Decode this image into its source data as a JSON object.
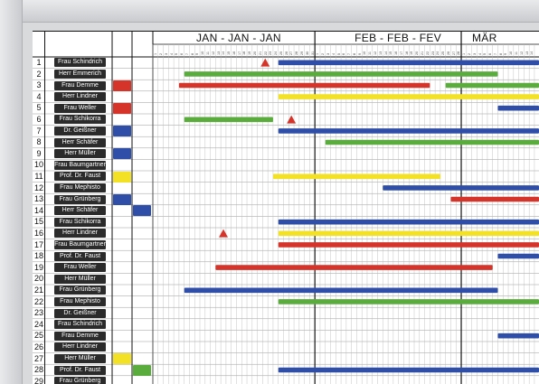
{
  "months": [
    "JAN - JAN - JAN",
    "FEB - FEB - FEV",
    "MÄR"
  ],
  "colors": {
    "red": "#d5342a",
    "green": "#5aac3c",
    "blue": "#2f4ea8",
    "yellow": "#f2e125",
    "frame": "#c9cbce",
    "tag": "#2b2b2b"
  },
  "rows": [
    {
      "num": "1",
      "name": "Frau Schindrich"
    },
    {
      "num": "2",
      "name": "Herr Emmerich"
    },
    {
      "num": "3",
      "name": "Frau Demme",
      "magnet": "red"
    },
    {
      "num": "4",
      "name": "Herr Lindner"
    },
    {
      "num": "5",
      "name": "Frau Weller",
      "magnet": "red"
    },
    {
      "num": "6",
      "name": "Frau Schikorra"
    },
    {
      "num": "7",
      "name": "Dr. Geißner",
      "magnet": "blue"
    },
    {
      "num": "8",
      "name": "Herr Schäfer"
    },
    {
      "num": "9",
      "name": "Herr Müller",
      "magnet": "blue"
    },
    {
      "num": "10",
      "name": "Frau Baumgartner"
    },
    {
      "num": "11",
      "name": "Prof. Dr. Faust",
      "magnet": "yellow"
    },
    {
      "num": "12",
      "name": "Frau Mephisto"
    },
    {
      "num": "13",
      "name": "Frau Grünberg",
      "magnet": "blue"
    },
    {
      "num": "14",
      "name": "Herr Schäfer",
      "magnet2": "blue"
    },
    {
      "num": "15",
      "name": "Frau Schikorra"
    },
    {
      "num": "16",
      "name": "Herr Lindner"
    },
    {
      "num": "17",
      "name": "Frau Baumgartner"
    },
    {
      "num": "18",
      "name": "Prof. Dr. Faust"
    },
    {
      "num": "19",
      "name": "Frau Weller"
    },
    {
      "num": "20",
      "name": "Herr Müller"
    },
    {
      "num": "21",
      "name": "Frau Grünberg"
    },
    {
      "num": "22",
      "name": "Frau Mephisto"
    },
    {
      "num": "23",
      "name": "Dr. Geißner"
    },
    {
      "num": "24",
      "name": "Frau Schindrich"
    },
    {
      "num": "25",
      "name": "Frau Demme"
    },
    {
      "num": "26",
      "name": "Herr Lindner"
    },
    {
      "num": "27",
      "name": "Herr Müller",
      "magnet": "yellow"
    },
    {
      "num": "28",
      "name": "Prof. Dr. Faust",
      "magnet2": "green"
    },
    {
      "num": "29",
      "name": "Frau Grünberg"
    }
  ],
  "bars": [
    {
      "row": 1,
      "color": "blue",
      "start": "Jan 25",
      "end": "Mar 11+"
    },
    {
      "row": 2,
      "color": "green",
      "start": "Jan 7",
      "end": "Mar 8"
    },
    {
      "row": 3,
      "color": "red",
      "start": "Jan 6",
      "end": "Feb 23"
    },
    {
      "row": 3,
      "color": "green",
      "start": "Feb 26",
      "end": "Mar 11+"
    },
    {
      "row": 4,
      "color": "yellow",
      "start": "Jan 25",
      "end": "Mar 11+"
    },
    {
      "row": 5,
      "color": "blue",
      "start": "Mar 8",
      "end": "Mar 11+"
    },
    {
      "row": 6,
      "color": "green",
      "start": "Jan 7",
      "end": "Jan 24"
    },
    {
      "row": 7,
      "color": "blue",
      "start": "Jan 25",
      "end": "Mar 11+"
    },
    {
      "row": 8,
      "color": "green",
      "start": "Feb 3",
      "end": "Mar 11+"
    },
    {
      "row": 11,
      "color": "yellow",
      "start": "Jan 24",
      "end": "Feb 25"
    },
    {
      "row": 12,
      "color": "blue",
      "start": "Feb 14",
      "end": "Mar 11+"
    },
    {
      "row": 13,
      "color": "red",
      "start": "Feb 27",
      "end": "Mar 11+"
    },
    {
      "row": 15,
      "color": "blue",
      "start": "Jan 25",
      "end": "Mar 11+"
    },
    {
      "row": 16,
      "color": "yellow",
      "start": "Jan 25",
      "end": "Mar 11+"
    },
    {
      "row": 17,
      "color": "red",
      "start": "Jan 25",
      "end": "Mar 11+"
    },
    {
      "row": 18,
      "color": "blue",
      "start": "Mar 8",
      "end": "Mar 11+"
    },
    {
      "row": 19,
      "color": "red",
      "start": "Jan 13",
      "end": "Mar 7"
    },
    {
      "row": 21,
      "color": "blue",
      "start": "Jan 7",
      "end": "Mar 8"
    },
    {
      "row": 22,
      "color": "green",
      "start": "Jan 25",
      "end": "Mar 11+"
    },
    {
      "row": 25,
      "color": "blue",
      "start": "Mar 8",
      "end": "Mar 11+"
    },
    {
      "row": 28,
      "color": "blue",
      "start": "Jan 25",
      "end": "Mar 11+"
    }
  ],
  "markers": [
    {
      "row": 1,
      "color": "red",
      "date": "Jan 22"
    },
    {
      "row": 6,
      "color": "red",
      "date": "Jan 27"
    },
    {
      "row": 16,
      "color": "red",
      "date": "Jan 14"
    }
  ]
}
